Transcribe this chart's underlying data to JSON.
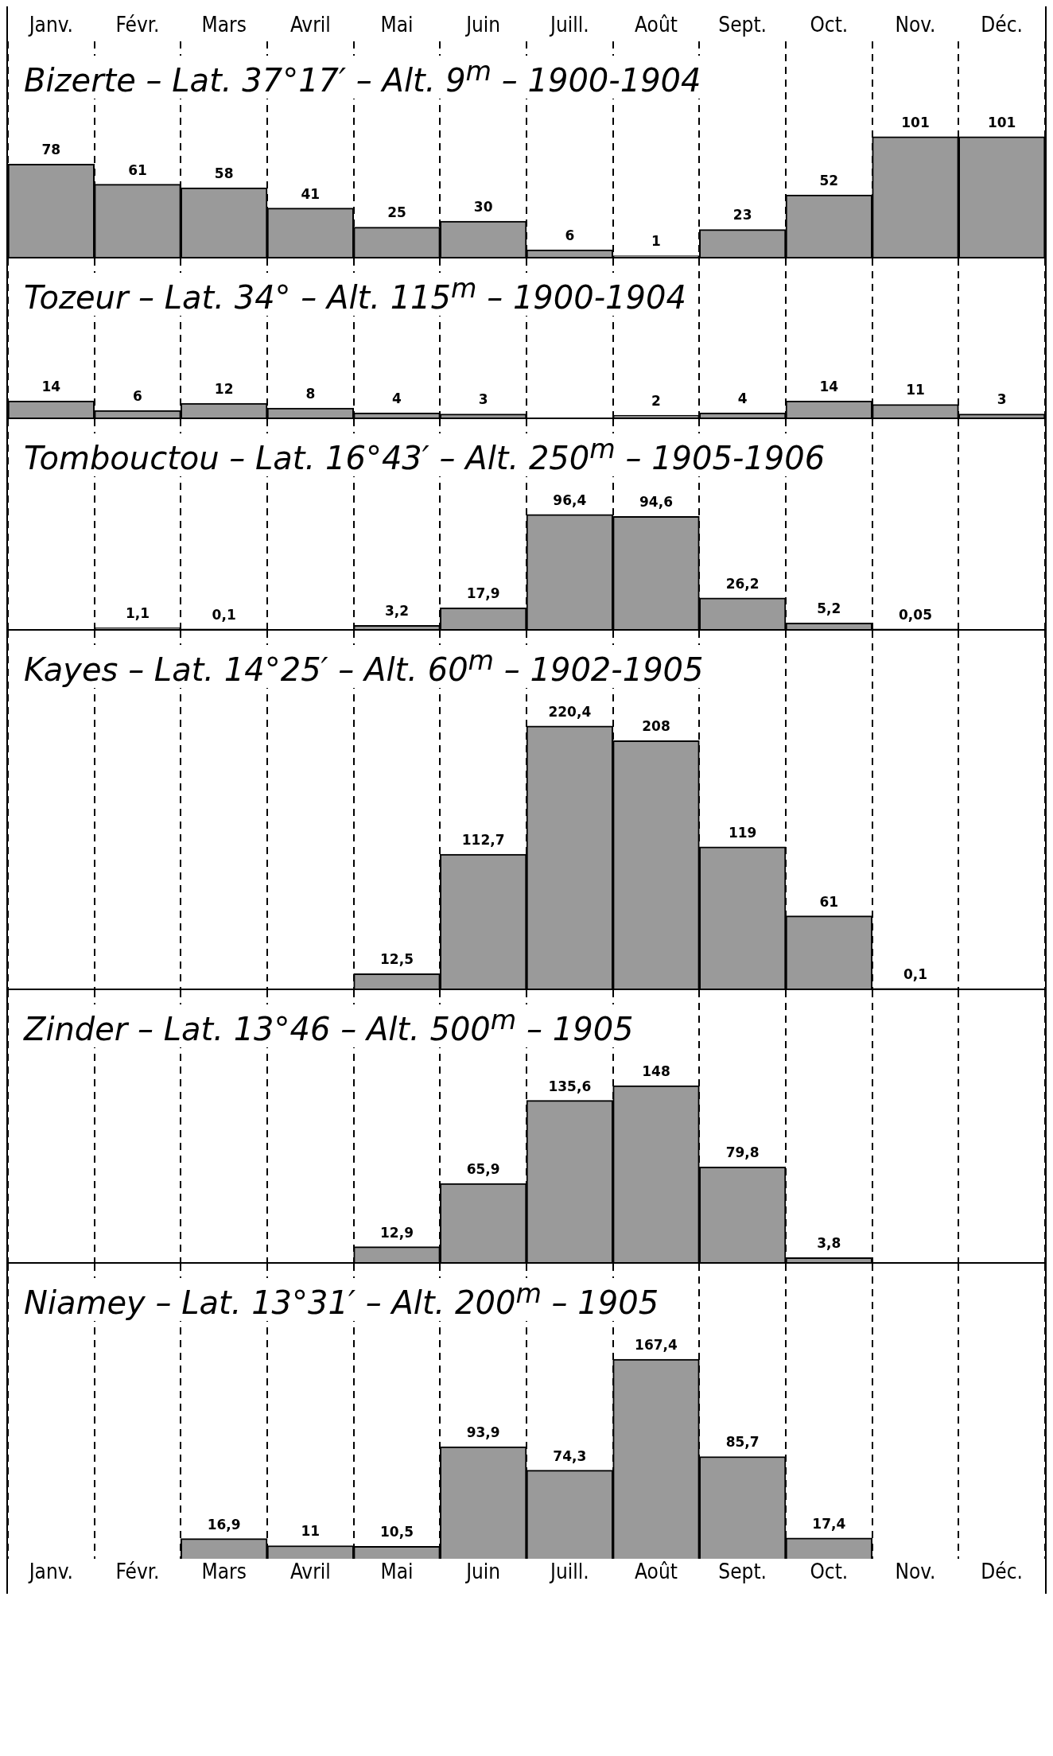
{
  "chart_data": [
    {
      "type": "bar",
      "title": "Bizerte – Lat. 37°17′ – Alt. 9$^{m}$ – 1900-1904",
      "categories": [
        "Janv.",
        "Févr.",
        "Mars",
        "Avril",
        "Mai",
        "Juin",
        "Juill.",
        "Août",
        "Sept.",
        "Oct.",
        "Nov.",
        "Déc."
      ],
      "values": [
        78,
        61,
        58,
        41,
        25,
        30,
        6,
        1,
        23,
        52,
        101,
        101
      ],
      "data_labels": true,
      "color": "#9a9a9a",
      "grid": "x",
      "tick_labels": "x"
    },
    {
      "type": "bar",
      "title": "Tozeur – Lat. 34° – Alt. 115$^{m}$ – 1900-1904",
      "categories": [
        null,
        null,
        null,
        null,
        null,
        null,
        null,
        null,
        null,
        null,
        null,
        null
      ],
      "values": [
        14,
        6,
        12,
        8,
        4,
        3,
        null,
        2,
        4,
        14,
        11,
        3
      ],
      "data_labels": true,
      "color": "#9a9a9a",
      "grid": "x",
      "tick_labels": false
    },
    {
      "type": "bar",
      "title": "Tombouctou – Lat. 16°43′ – Alt. 250$^{m}$ – 1905-1906",
      "categories": [
        null,
        null,
        null,
        null,
        null,
        null,
        null,
        null,
        null,
        null,
        null,
        null
      ],
      "values": [
        null,
        1.1,
        0.1,
        null,
        3.2,
        17.9,
        96.4,
        94.6,
        26.2,
        5.2,
        0.05,
        null
      ],
      "value_labels": [
        null,
        "1,1",
        "0,1",
        null,
        "3,2",
        "17,9",
        "96,4",
        "94,6",
        "26,2",
        "5,2",
        "0,05",
        null
      ],
      "color": "#9a9a9a",
      "grid": "x",
      "tick_labels": false
    },
    {
      "type": "bar",
      "title": "Kayes – Lat. 14°25′ – Alt. 60$^{m}$ – 1902-1905",
      "categories": [
        null,
        null,
        null,
        null,
        null,
        null,
        null,
        null,
        null,
        null,
        null,
        null
      ],
      "values": [
        null,
        null,
        null,
        null,
        12.5,
        112.7,
        220.4,
        208,
        119,
        61,
        0.1,
        null
      ],
      "value_labels": [
        null,
        null,
        null,
        null,
        "12,5",
        "112,7",
        "220,4",
        "208",
        "119",
        "61",
        "0,1",
        null
      ],
      "color": "#9a9a9a",
      "grid": "x",
      "tick_labels": false
    },
    {
      "type": "bar",
      "title": "Zinder – Lat. 13°46 – Alt. 500$^{m}$ – 1905",
      "categories": [
        null,
        null,
        null,
        null,
        null,
        null,
        null,
        null,
        null,
        null,
        null,
        null
      ],
      "values": [
        null,
        null,
        null,
        null,
        12.9,
        65.9,
        135.6,
        148,
        79.8,
        3.8,
        null,
        null
      ],
      "value_labels": [
        null,
        null,
        null,
        null,
        "12,9",
        "65,9",
        "135,6",
        "148",
        "79,8",
        "3,8",
        null,
        null
      ],
      "color": "#9a9a9a",
      "grid": "x",
      "tick_labels": false
    },
    {
      "type": "bar",
      "title": "Niamey – Lat. 13°31′ – Alt. 200$^{m}$ – 1905",
      "categories": [
        "Janv.",
        "Févr.",
        "Mars",
        "Avril",
        "Mai",
        "Juin",
        "Juill.",
        "Août",
        "Sept.",
        "Oct.",
        "Nov.",
        "Déc."
      ],
      "values": [
        null,
        null,
        16.9,
        11,
        10.5,
        93.9,
        74.3,
        167.4,
        85.7,
        17.4,
        null,
        null
      ],
      "value_labels": [
        null,
        null,
        "16,9",
        "11",
        "10,5",
        "93,9",
        "74,3",
        "167,4",
        "85,7",
        "17,4",
        null,
        null
      ],
      "color": "#9a9a9a",
      "grid": "x",
      "tick_labels": "x"
    }
  ]
}
